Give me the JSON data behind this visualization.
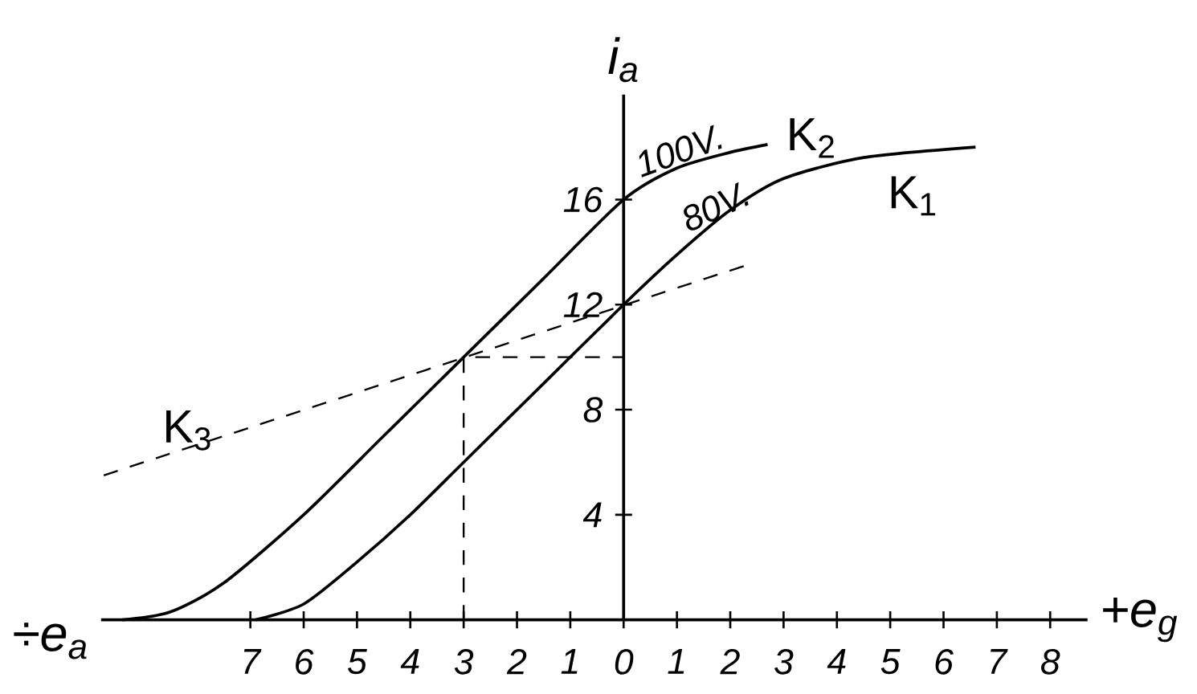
{
  "chart_data": {
    "type": "line",
    "xlabel": "+e$_{g}$",
    "ylabel": "i$_{a}$",
    "xlim": [
      -9.8,
      8.7
    ],
    "ylim": [
      0,
      20
    ],
    "xticks": [
      {
        "value": -7,
        "label": "7"
      },
      {
        "value": -6,
        "label": "6"
      },
      {
        "value": -5,
        "label": "5"
      },
      {
        "value": -4,
        "label": "4"
      },
      {
        "value": -3,
        "label": "3"
      },
      {
        "value": -2,
        "label": "2"
      },
      {
        "value": -1,
        "label": "1"
      },
      0,
      1,
      2,
      3,
      4,
      5,
      6,
      7,
      8
    ],
    "yticks": [
      4,
      8,
      12,
      16
    ],
    "series": [
      {
        "name": "K$_{1}$",
        "color": "#000000",
        "x": [
          -6.9,
          -6,
          -5,
          -4,
          -3,
          -1.5,
          0,
          1,
          2,
          3,
          4.5,
          6.6
        ],
        "values": [
          0,
          0.6,
          2.2,
          4,
          6,
          9,
          12,
          13.9,
          15.6,
          16.8,
          17.6,
          18
        ]
      },
      {
        "name": "K$_{2}$",
        "color": "#000000",
        "x": [
          -9.4,
          -8.5,
          -7.5,
          -6,
          -4.5,
          -3,
          -1.5,
          0,
          1,
          2,
          2.7
        ],
        "values": [
          0,
          0.3,
          1.4,
          4,
          7,
          10,
          13,
          16,
          17.2,
          17.8,
          18.1
        ]
      },
      {
        "name": "K$_{3}$",
        "color": "#000000",
        "line_style": "dashed",
        "x": [
          -9.75,
          2.3
        ],
        "values": [
          5.5,
          13.5
        ]
      },
      {
        "color": "#000000",
        "line_style": "dashed",
        "x": [
          -3,
          -3,
          0
        ],
        "values": [
          0,
          10,
          10
        ]
      }
    ],
    "annotations": [
      {
        "text": "100V.",
        "x": 0.3,
        "y": 16.7
      },
      {
        "text": "80V.",
        "x": 1.2,
        "y": 14.6
      },
      "÷e$_{a}$"
    ]
  }
}
